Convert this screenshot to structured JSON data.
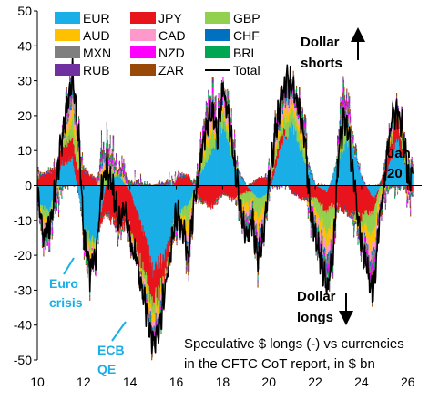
{
  "chart_data": {
    "type": "area",
    "title": "",
    "xlabel": "",
    "ylabel": "",
    "x_tick_labels": [
      "10",
      "12",
      "14",
      "16",
      "18",
      "20",
      "22",
      "24",
      "26"
    ],
    "x_tick_years": [
      2010,
      2012,
      2014,
      2016,
      2018,
      2020,
      2022,
      2024,
      2026
    ],
    "y_ticks": [
      -50,
      -40,
      -30,
      -20,
      -10,
      0,
      10,
      20,
      30,
      40,
      50
    ],
    "xlim": [
      2010,
      2026.6
    ],
    "ylim": [
      -50,
      50
    ],
    "grid": false,
    "legend_position": "top-left",
    "legend": [
      {
        "label": "EUR",
        "color": "#1AAFE6"
      },
      {
        "label": "JPY",
        "color": "#E8141C"
      },
      {
        "label": "GBP",
        "color": "#92D050"
      },
      {
        "label": "AUD",
        "color": "#FFC000"
      },
      {
        "label": "CAD",
        "color": "#FF99CC"
      },
      {
        "label": "CHF",
        "color": "#0070C0"
      },
      {
        "label": "MXN",
        "color": "#7F7F7F"
      },
      {
        "label": "NZD",
        "color": "#FF00FF"
      },
      {
        "label": "BRL",
        "color": "#00A651"
      },
      {
        "label": "RUB",
        "color": "#7030A0"
      },
      {
        "label": "ZAR",
        "color": "#984807"
      },
      {
        "label": "Total",
        "color": "#000000"
      }
    ],
    "series": [
      {
        "name": "EUR",
        "x": [
          2010.0,
          2010.5,
          2011.0,
          2011.5,
          2012.0,
          2012.5,
          2013.0,
          2013.5,
          2014.0,
          2014.5,
          2015.0,
          2015.5,
          2016.0,
          2016.5,
          2017.0,
          2017.5,
          2018.0,
          2018.5,
          2019.0,
          2019.5,
          2020.0,
          2020.5,
          2021.0,
          2021.5,
          2022.0,
          2022.5,
          2023.0,
          2023.5,
          2024.0,
          2024.5,
          2025.0,
          2025.5,
          2026.0
        ],
        "values": [
          -5,
          -8,
          6,
          8,
          -12,
          -18,
          2,
          3,
          -2,
          -12,
          -26,
          -20,
          -8,
          -6,
          3,
          10,
          18,
          6,
          0,
          -4,
          -2,
          12,
          18,
          8,
          0,
          -2,
          8,
          14,
          2,
          -4,
          2,
          14,
          4
        ]
      },
      {
        "name": "JPY",
        "x": [
          2010.0,
          2010.5,
          2011.0,
          2011.5,
          2012.0,
          2012.5,
          2013.0,
          2013.5,
          2014.0,
          2014.5,
          2015.0,
          2015.5,
          2016.0,
          2016.5,
          2017.0,
          2017.5,
          2018.0,
          2018.5,
          2019.0,
          2019.5,
          2020.0,
          2020.5,
          2021.0,
          2021.5,
          2022.0,
          2022.5,
          2023.0,
          2023.5,
          2024.0,
          2024.5,
          2025.0,
          2025.5,
          2026.0
        ],
        "values": [
          2,
          4,
          5,
          6,
          4,
          2,
          -8,
          -12,
          -10,
          -12,
          -10,
          -6,
          2,
          3,
          -4,
          -6,
          -2,
          -4,
          -2,
          2,
          2,
          3,
          -2,
          -4,
          -4,
          -6,
          -6,
          -8,
          -10,
          -4,
          4,
          6,
          -2
        ]
      },
      {
        "name": "Total",
        "x": [
          2010.0,
          2010.25,
          2010.5,
          2010.75,
          2011.0,
          2011.25,
          2011.5,
          2011.75,
          2012.0,
          2012.25,
          2012.5,
          2012.75,
          2013.0,
          2013.25,
          2013.5,
          2013.75,
          2014.0,
          2014.25,
          2014.5,
          2014.75,
          2015.0,
          2015.25,
          2015.5,
          2015.75,
          2016.0,
          2016.25,
          2016.5,
          2016.75,
          2017.0,
          2017.25,
          2017.5,
          2017.75,
          2018.0,
          2018.25,
          2018.5,
          2018.75,
          2019.0,
          2019.25,
          2019.5,
          2019.75,
          2020.0,
          2020.25,
          2020.5,
          2020.75,
          2021.0,
          2021.25,
          2021.5,
          2021.75,
          2022.0,
          2022.25,
          2022.5,
          2022.75,
          2023.0,
          2023.25,
          2023.5,
          2023.75,
          2024.0,
          2024.25,
          2024.5,
          2024.75,
          2025.0,
          2025.25,
          2025.5,
          2025.75,
          2026.0
        ],
        "values": [
          -3,
          -15,
          -12,
          -2,
          12,
          22,
          32,
          15,
          -15,
          -25,
          -20,
          0,
          6,
          -2,
          -10,
          -8,
          -15,
          -22,
          -30,
          -38,
          -45,
          -40,
          -30,
          -18,
          -8,
          -12,
          -20,
          -5,
          5,
          15,
          22,
          14,
          28,
          18,
          5,
          -5,
          -15,
          -10,
          -20,
          -15,
          2,
          15,
          25,
          30,
          28,
          22,
          15,
          -5,
          -15,
          -22,
          -30,
          -20,
          10,
          20,
          10,
          -5,
          -18,
          -25,
          -32,
          -10,
          5,
          18,
          22,
          16,
          2
        ]
      }
    ],
    "annotations": [
      {
        "text": "Dollar shorts",
        "color": "#000000"
      },
      {
        "text": "Dollar longs",
        "color": "#000000"
      },
      {
        "text": "Jan 20",
        "color": "#000000"
      },
      {
        "text": "Euro crisis",
        "color": "#1AAFE6"
      },
      {
        "text": "ECB QE",
        "color": "#1AAFE6"
      },
      {
        "text": "Speculative $ longs (-) vs currencies in the CFTC CoT report, in $ bn",
        "color": "#000000"
      }
    ]
  },
  "labels": {
    "dollar_shorts_1": "Dollar",
    "dollar_shorts_2": "shorts",
    "dollar_longs_1": "Dollar",
    "dollar_longs_2": "longs",
    "jan_1": "Jan",
    "jan_2": "20",
    "euro_1": "Euro",
    "euro_2": "crisis",
    "ecb_1": "ECB",
    "ecb_2": "QE",
    "caption_1": "Speculative $ longs (-) vs currencies",
    "caption_2": "in the CFTC CoT report, in $ bn"
  }
}
